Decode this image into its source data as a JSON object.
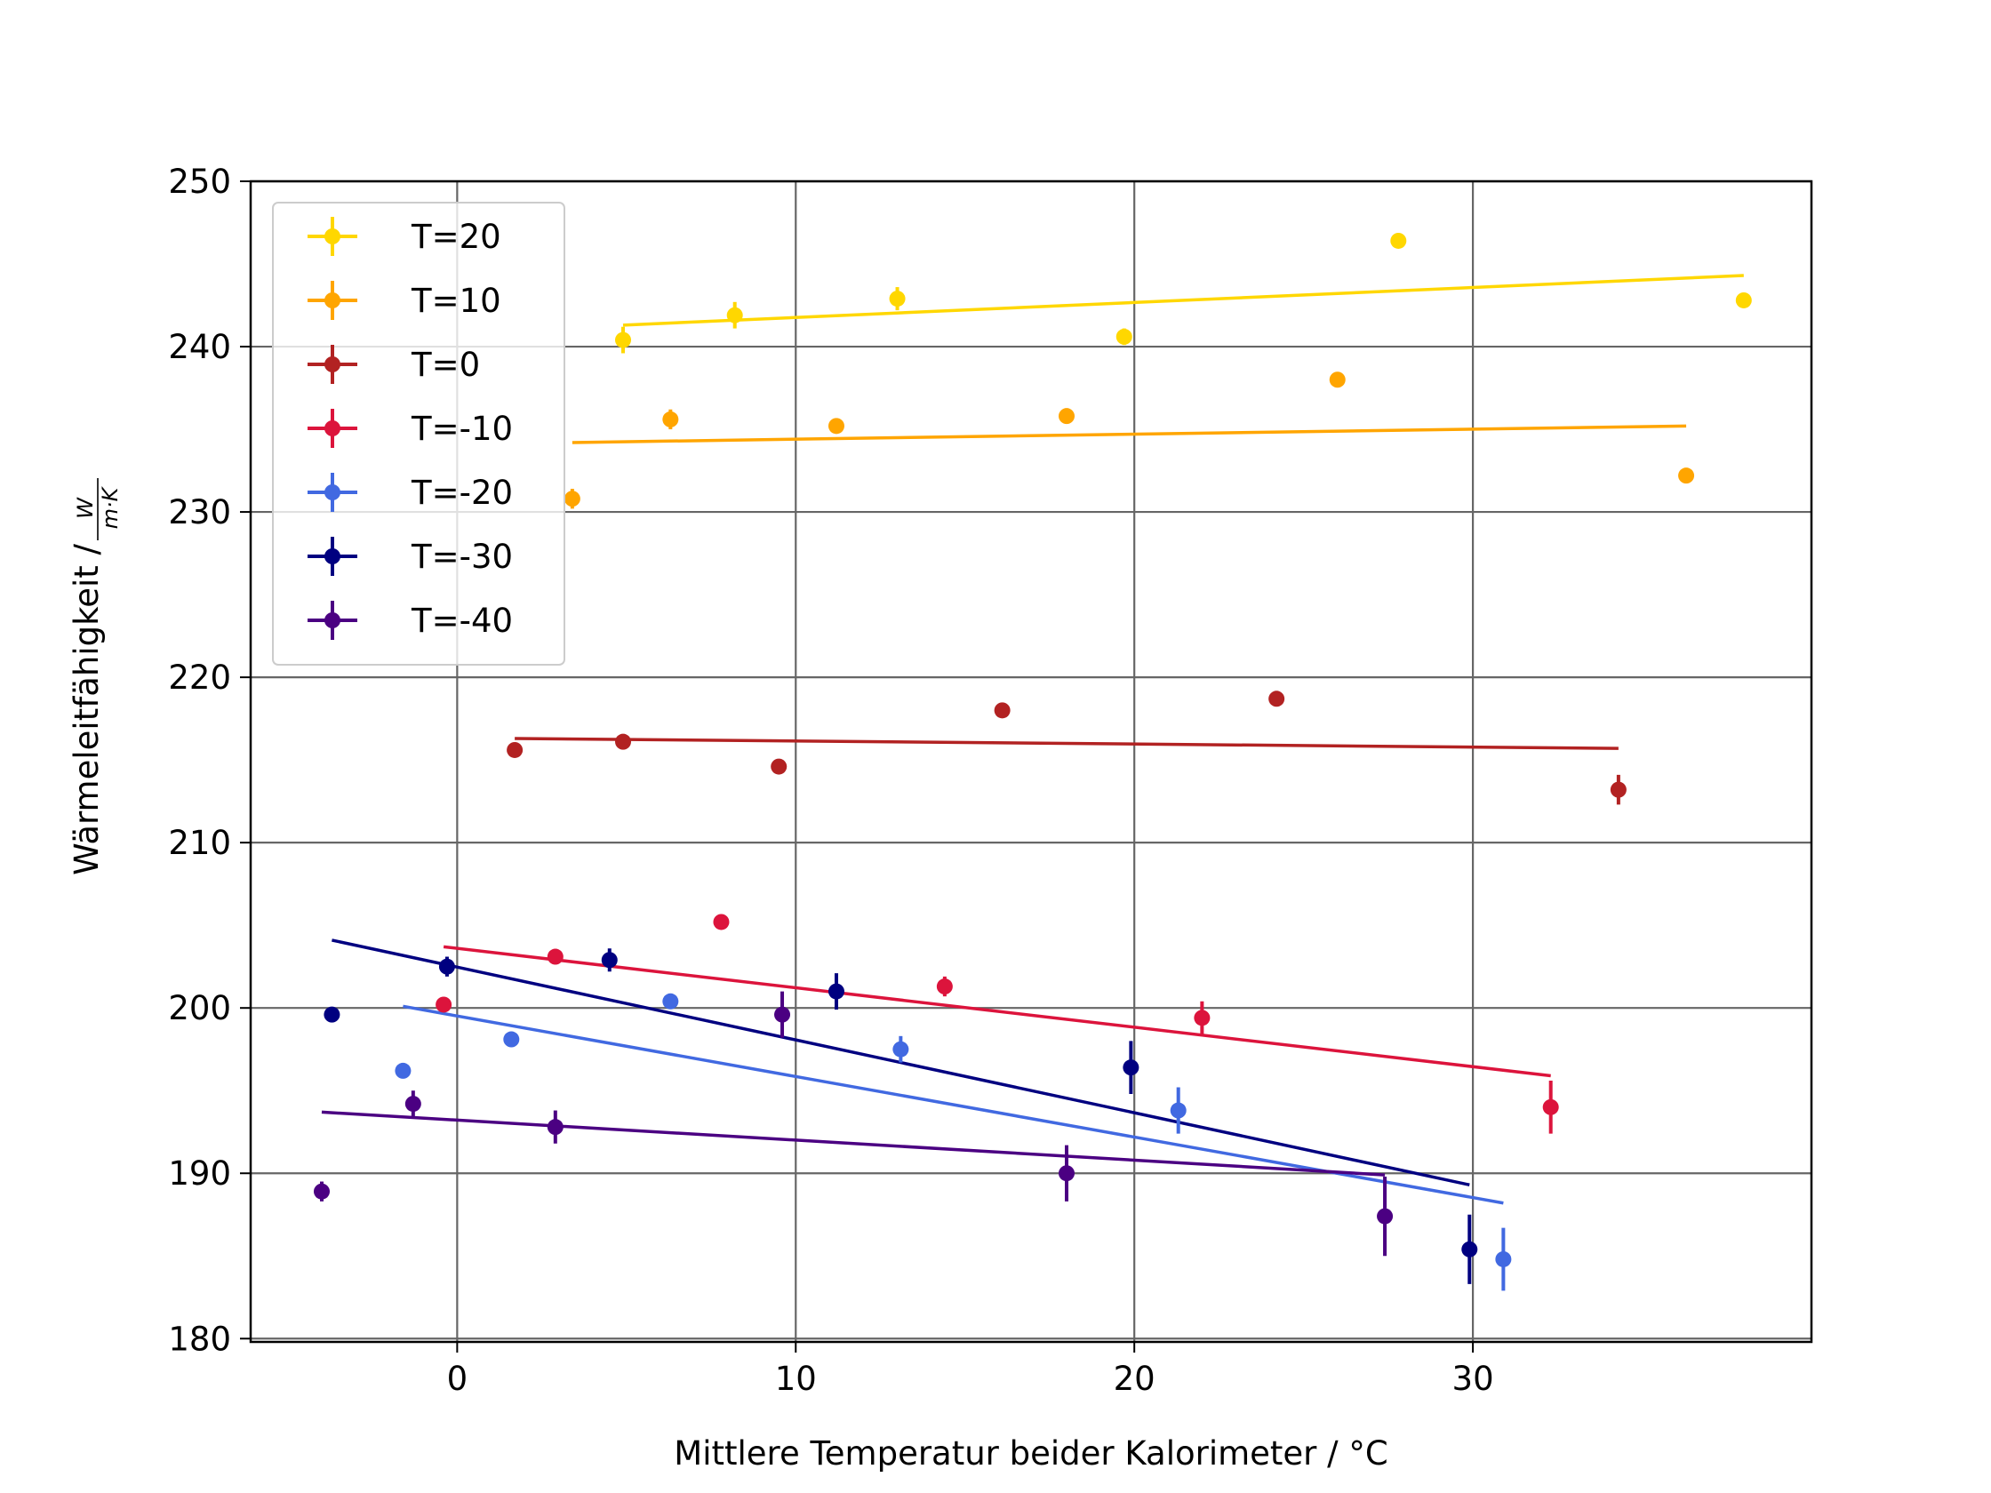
{
  "chart_data": {
    "type": "scatter",
    "xlabel": "Mittlere Temperatur beider Kalorimeter / °C",
    "ylabel_text": "Wärmeleitfähigkeit / ",
    "ylabel_unit_num": "W",
    "ylabel_unit_den": "m·K",
    "xlim": [
      -6.1,
      40.0
    ],
    "ylim": [
      179.8,
      250.0
    ],
    "xticks": [
      0,
      10,
      20,
      30
    ],
    "yticks": [
      180,
      190,
      200,
      210,
      220,
      230,
      240,
      250
    ],
    "grid": true,
    "legend_position": "upper-left",
    "series": [
      {
        "name": "T=20",
        "color": "#FFD700",
        "points": [
          [
            4.9,
            240.4,
            0.8
          ],
          [
            8.2,
            241.9,
            0.8
          ],
          [
            13.0,
            242.9,
            0.7
          ],
          [
            19.7,
            240.6,
            0.5
          ],
          [
            27.8,
            246.4,
            0.3
          ],
          [
            38.0,
            242.8,
            0.3
          ]
        ],
        "fit": [
          [
            4.9,
            241.3
          ],
          [
            38.0,
            244.3
          ]
        ]
      },
      {
        "name": "T=10",
        "color": "#FFA500",
        "points": [
          [
            3.4,
            230.8,
            0.6
          ],
          [
            6.3,
            235.6,
            0.6
          ],
          [
            11.2,
            235.2,
            0.4
          ],
          [
            18.0,
            235.8,
            0.3
          ],
          [
            26.0,
            238.0,
            0.3
          ],
          [
            36.3,
            232.2,
            0.3
          ]
        ],
        "fit": [
          [
            3.4,
            234.2
          ],
          [
            36.3,
            235.2
          ]
        ]
      },
      {
        "name": "T=0",
        "color": "#B22222",
        "points": [
          [
            1.7,
            215.6,
            0.3
          ],
          [
            4.9,
            216.1,
            0.3
          ],
          [
            9.5,
            214.6,
            0.3
          ],
          [
            16.1,
            218.0,
            0.3
          ],
          [
            24.2,
            218.7,
            0.3
          ],
          [
            34.3,
            213.2,
            0.9
          ]
        ],
        "fit": [
          [
            1.7,
            216.3
          ],
          [
            34.3,
            215.7
          ]
        ]
      },
      {
        "name": "T=-10",
        "color": "#DC143C",
        "points": [
          [
            -0.4,
            200.2,
            0.3
          ],
          [
            2.9,
            203.1,
            0.3
          ],
          [
            7.8,
            205.2,
            0.3
          ],
          [
            14.4,
            201.3,
            0.6
          ],
          [
            22.0,
            199.4,
            1.0
          ],
          [
            32.3,
            194.0,
            1.6
          ]
        ],
        "fit": [
          [
            -0.4,
            203.7
          ],
          [
            32.3,
            195.9
          ]
        ]
      },
      {
        "name": "T=-20",
        "color": "#4169E1",
        "points": [
          [
            -1.6,
            196.2,
            0.3
          ],
          [
            1.6,
            198.1,
            0.3
          ],
          [
            6.3,
            200.4,
            0.4
          ],
          [
            13.1,
            197.5,
            0.8
          ],
          [
            21.3,
            193.8,
            1.4
          ],
          [
            30.9,
            184.8,
            1.9
          ]
        ],
        "fit": [
          [
            -1.6,
            200.1
          ],
          [
            30.9,
            188.2
          ]
        ]
      },
      {
        "name": "T=-30",
        "color": "#000080",
        "points": [
          [
            -3.7,
            199.6,
            0.3
          ],
          [
            -0.3,
            202.5,
            0.6
          ],
          [
            4.5,
            202.9,
            0.7
          ],
          [
            11.2,
            201.0,
            1.1
          ],
          [
            19.9,
            196.4,
            1.6
          ],
          [
            29.9,
            185.4,
            2.1
          ]
        ],
        "fit": [
          [
            -3.7,
            204.1
          ],
          [
            29.9,
            189.3
          ]
        ]
      },
      {
        "name": "T=-40",
        "color": "#4B0082",
        "points": [
          [
            -4.0,
            188.9,
            0.6
          ],
          [
            -1.3,
            194.2,
            0.8
          ],
          [
            2.9,
            192.8,
            1.0
          ],
          [
            9.6,
            199.6,
            1.4
          ],
          [
            18.0,
            190.0,
            1.7
          ],
          [
            27.4,
            187.4,
            2.4
          ]
        ],
        "fit": [
          [
            -4.0,
            193.7
          ],
          [
            27.4,
            189.9
          ]
        ]
      }
    ]
  }
}
